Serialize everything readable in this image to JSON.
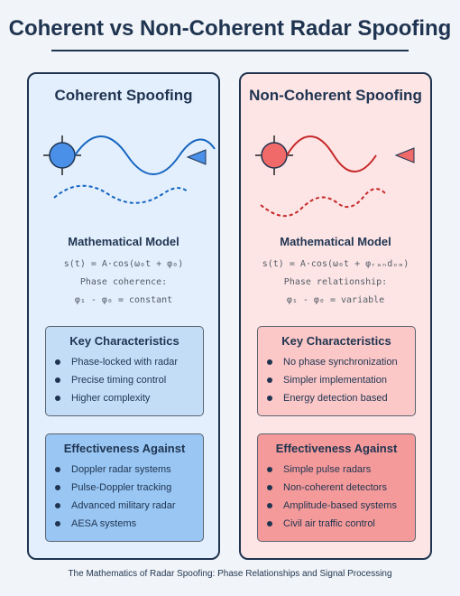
{
  "title": "Coherent vs Non-Coherent Radar Spoofing",
  "coherent": {
    "title": "Coherent Spoofing",
    "color": "#1565c0",
    "model_title": "Mathematical Model",
    "equation": "s(t) = A·cos(ω₀t + φ₀)",
    "phase_label": "Phase coherence:",
    "phase_eq": "φ₁ - φ₀ = constant",
    "characteristics": {
      "title": "Key Characteristics",
      "items": [
        "Phase-locked with radar",
        "Precise timing control",
        "Higher complexity"
      ]
    },
    "effectiveness": {
      "title": "Effectiveness Against",
      "items": [
        "Doppler radar systems",
        "Pulse-Doppler tracking",
        "Advanced military radar",
        "AESA systems"
      ]
    }
  },
  "noncoherent": {
    "title": "Non-Coherent Spoofing",
    "color": "#c62828",
    "model_title": "Mathematical Model",
    "equation": "s(t) = A·cos(ω₀t + φᵣₐₙdₒₘ)",
    "phase_label": "Phase relationship:",
    "phase_eq": "φ₁ - φ₀ = variable",
    "characteristics": {
      "title": "Key Characteristics",
      "items": [
        "No phase synchronization",
        "Simpler implementation",
        "Energy detection based"
      ]
    },
    "effectiveness": {
      "title": "Effectiveness Against",
      "items": [
        "Simple pulse radars",
        "Non-coherent detectors",
        "Amplitude-based systems",
        "Civil air traffic control"
      ]
    }
  },
  "footer": "The Mathematics of Radar Spoofing: Phase Relationships and Signal Processing"
}
